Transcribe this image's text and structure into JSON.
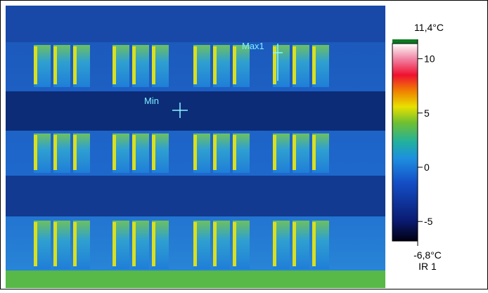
{
  "image": {
    "markers": [
      {
        "label": "Max1"
      },
      {
        "label": "Min"
      }
    ]
  },
  "scale": {
    "max": {
      "value": 11.4,
      "label": "11,4°C"
    },
    "min": {
      "value": -6.8,
      "label": "-6,8°C"
    },
    "channel": "IR 1",
    "ticks": [
      10,
      5,
      0,
      -5
    ]
  }
}
